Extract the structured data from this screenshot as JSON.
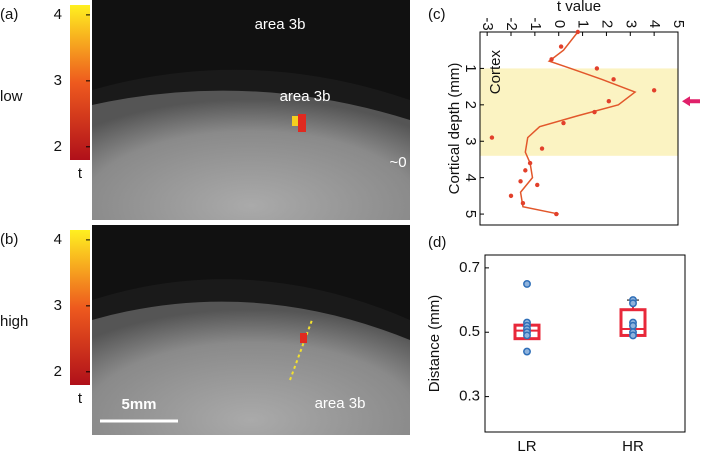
{
  "panels": [
    {
      "label": "(a)",
      "condition": "low",
      "colorbar": {
        "lim": [
          1.8,
          4.15
        ],
        "ticks": [
          4,
          3,
          2
        ],
        "label": "t"
      },
      "annotations": [
        "area 3b",
        "area 3b",
        "~0"
      ]
    },
    {
      "label": "(b)",
      "condition": "high",
      "colorbar": {
        "lim": [
          1.8,
          4.15
        ],
        "ticks": [
          4,
          3,
          2
        ],
        "label": "t"
      },
      "annotations": [
        "area 3b"
      ],
      "scale_bar": "5mm"
    }
  ],
  "chart_data": [
    {
      "type": "line",
      "panel_label": "(c)",
      "xlabel": "t value",
      "ylabel": "Cortical depth (mm)",
      "xlim": [
        -3.3,
        5
      ],
      "xticks": [
        -3,
        -2,
        -1,
        0,
        1,
        2,
        3,
        4,
        5
      ],
      "ylim": [
        0,
        5.3
      ],
      "yticks": [
        1,
        2,
        3,
        4,
        5
      ],
      "region": {
        "label": "Cortex",
        "range": [
          1,
          3.4
        ],
        "color": "#fbf3c2"
      },
      "marker_depth": 1.9,
      "marker_color": "#e0206a",
      "series": [
        {
          "style": "line",
          "color": "#e2572b",
          "x": [
            0.8,
            0.2,
            -0.4,
            0.5,
            1.8,
            3.2,
            2.5,
            0.8,
            -0.8,
            -1.3,
            -1.4,
            -1.2,
            -1.1,
            -1.6,
            -1.5,
            0.0
          ],
          "values": [
            0,
            0.5,
            0.8,
            1.0,
            1.3,
            1.65,
            2.0,
            2.3,
            2.6,
            2.9,
            3.3,
            3.6,
            4.0,
            4.4,
            4.8,
            5.0
          ]
        },
        {
          "style": "points",
          "color": "#e2402b",
          "x": [
            0.8,
            0.1,
            -0.3,
            1.6,
            2.3,
            4.0,
            2.1,
            1.5,
            0.2,
            -2.8,
            -0.7,
            -1.2,
            -1.4,
            -1.6,
            -0.9,
            -2.0,
            -1.5,
            -0.1
          ],
          "values": [
            0.0,
            0.4,
            0.75,
            1.0,
            1.3,
            1.6,
            1.9,
            2.2,
            2.5,
            2.9,
            3.2,
            3.6,
            3.8,
            4.1,
            4.2,
            4.5,
            4.7,
            5.0
          ]
        }
      ]
    },
    {
      "type": "box",
      "panel_label": "(d)",
      "ylabel": "Distance (mm)",
      "categories": [
        "LR",
        "HR"
      ],
      "ylim": [
        0.19,
        0.74
      ],
      "yticks": [
        0.3,
        0.5,
        0.7
      ],
      "box_color": "#e8283a",
      "point_color": "#2f6fb8",
      "boxes": [
        {
          "q1": 0.48,
          "median": 0.505,
          "q3": 0.522,
          "points": [
            0.65,
            0.53,
            0.52,
            0.51,
            0.5,
            0.49,
            0.44
          ]
        },
        {
          "q1": 0.49,
          "median": 0.51,
          "q3": 0.57,
          "whisker_high": 0.6,
          "points": [
            0.6,
            0.59,
            0.53,
            0.52,
            0.5,
            0.49
          ]
        }
      ]
    }
  ]
}
